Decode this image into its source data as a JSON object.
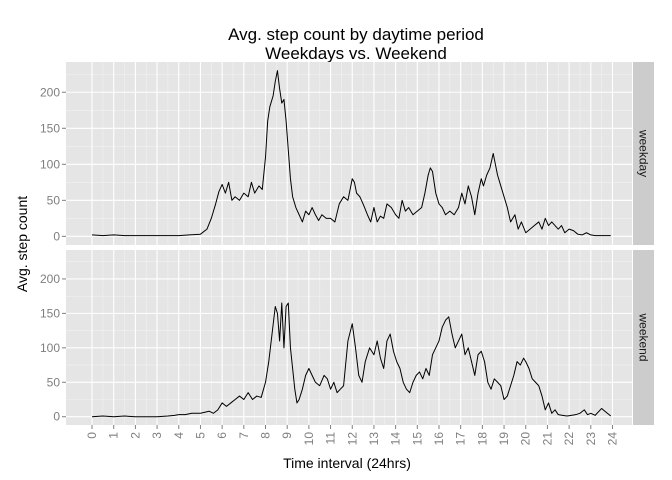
{
  "chart_data": {
    "type": "line",
    "title_lines": [
      "Avg. step count by daytime period",
      "Weekdays vs. Weekend"
    ],
    "xlabel": "Time interval (24hrs)",
    "ylabel": "Avg. step count",
    "x_ticks": [
      "0",
      "1",
      "2",
      "3",
      "4",
      "5",
      "6",
      "7",
      "8",
      "9",
      "10",
      "11",
      "12",
      "13",
      "14",
      "15",
      "16",
      "17",
      "18",
      "19",
      "20",
      "21",
      "22",
      "23",
      "24"
    ],
    "xlim": [
      -1.2,
      24.9
    ],
    "ylim": [
      -12,
      242
    ],
    "y_ticks": [
      0,
      50,
      100,
      150,
      200
    ],
    "y_tick_labels": [
      "0",
      "50",
      "100",
      "150",
      "200"
    ],
    "x_unit": "hour",
    "grid": true,
    "panel_background": "#e5e5e5",
    "strip_background": "#cccccc",
    "line_color": "#000000",
    "panels": [
      {
        "label": "weekday",
        "points": [
          [
            0,
            2
          ],
          [
            0.5,
            1
          ],
          [
            1,
            2
          ],
          [
            1.5,
            1
          ],
          [
            2,
            1
          ],
          [
            2.5,
            1
          ],
          [
            3,
            1
          ],
          [
            3.5,
            1
          ],
          [
            4,
            1
          ],
          [
            4.5,
            2
          ],
          [
            5,
            3
          ],
          [
            5.3,
            10
          ],
          [
            5.5,
            25
          ],
          [
            5.7,
            45
          ],
          [
            5.85,
            62
          ],
          [
            6,
            72
          ],
          [
            6.15,
            60
          ],
          [
            6.3,
            75
          ],
          [
            6.45,
            50
          ],
          [
            6.6,
            55
          ],
          [
            6.8,
            50
          ],
          [
            7,
            60
          ],
          [
            7.2,
            55
          ],
          [
            7.35,
            75
          ],
          [
            7.5,
            60
          ],
          [
            7.7,
            70
          ],
          [
            7.85,
            65
          ],
          [
            8,
            110
          ],
          [
            8.1,
            160
          ],
          [
            8.2,
            180
          ],
          [
            8.35,
            195
          ],
          [
            8.45,
            215
          ],
          [
            8.55,
            230
          ],
          [
            8.65,
            205
          ],
          [
            8.75,
            185
          ],
          [
            8.85,
            190
          ],
          [
            8.95,
            160
          ],
          [
            9.05,
            120
          ],
          [
            9.15,
            80
          ],
          [
            9.25,
            55
          ],
          [
            9.4,
            40
          ],
          [
            9.55,
            30
          ],
          [
            9.7,
            20
          ],
          [
            9.85,
            35
          ],
          [
            10,
            30
          ],
          [
            10.15,
            40
          ],
          [
            10.3,
            30
          ],
          [
            10.45,
            22
          ],
          [
            10.6,
            30
          ],
          [
            10.8,
            25
          ],
          [
            11,
            25
          ],
          [
            11.2,
            20
          ],
          [
            11.4,
            45
          ],
          [
            11.6,
            55
          ],
          [
            11.8,
            50
          ],
          [
            12,
            80
          ],
          [
            12.1,
            75
          ],
          [
            12.2,
            60
          ],
          [
            12.35,
            55
          ],
          [
            12.5,
            45
          ],
          [
            12.7,
            30
          ],
          [
            12.85,
            20
          ],
          [
            13,
            40
          ],
          [
            13.15,
            20
          ],
          [
            13.3,
            28
          ],
          [
            13.45,
            25
          ],
          [
            13.6,
            45
          ],
          [
            13.8,
            40
          ],
          [
            14,
            30
          ],
          [
            14.15,
            25
          ],
          [
            14.3,
            50
          ],
          [
            14.45,
            35
          ],
          [
            14.6,
            40
          ],
          [
            14.8,
            30
          ],
          [
            15,
            35
          ],
          [
            15.2,
            40
          ],
          [
            15.35,
            60
          ],
          [
            15.5,
            85
          ],
          [
            15.6,
            95
          ],
          [
            15.7,
            90
          ],
          [
            15.85,
            60
          ],
          [
            16,
            45
          ],
          [
            16.15,
            40
          ],
          [
            16.3,
            30
          ],
          [
            16.5,
            35
          ],
          [
            16.7,
            30
          ],
          [
            16.9,
            40
          ],
          [
            17.05,
            60
          ],
          [
            17.2,
            45
          ],
          [
            17.35,
            70
          ],
          [
            17.5,
            55
          ],
          [
            17.65,
            30
          ],
          [
            17.8,
            60
          ],
          [
            17.95,
            80
          ],
          [
            18.05,
            70
          ],
          [
            18.2,
            85
          ],
          [
            18.35,
            95
          ],
          [
            18.5,
            115
          ],
          [
            18.6,
            100
          ],
          [
            18.7,
            85
          ],
          [
            18.85,
            70
          ],
          [
            19,
            55
          ],
          [
            19.15,
            40
          ],
          [
            19.3,
            20
          ],
          [
            19.5,
            30
          ],
          [
            19.65,
            10
          ],
          [
            19.8,
            20
          ],
          [
            20,
            5
          ],
          [
            20.2,
            10
          ],
          [
            20.4,
            15
          ],
          [
            20.6,
            20
          ],
          [
            20.75,
            10
          ],
          [
            20.9,
            25
          ],
          [
            21.05,
            15
          ],
          [
            21.2,
            20
          ],
          [
            21.35,
            15
          ],
          [
            21.5,
            10
          ],
          [
            21.65,
            15
          ],
          [
            21.8,
            5
          ],
          [
            22,
            10
          ],
          [
            22.2,
            8
          ],
          [
            22.4,
            3
          ],
          [
            22.6,
            2
          ],
          [
            22.8,
            5
          ],
          [
            23,
            2
          ],
          [
            23.2,
            1
          ],
          [
            23.4,
            1
          ],
          [
            23.6,
            1
          ],
          [
            23.92,
            1
          ]
        ]
      },
      {
        "label": "weekend",
        "points": [
          [
            0,
            0
          ],
          [
            0.5,
            1
          ],
          [
            1,
            0
          ],
          [
            1.5,
            1
          ],
          [
            2,
            0
          ],
          [
            2.5,
            0
          ],
          [
            3,
            0
          ],
          [
            3.5,
            1
          ],
          [
            3.8,
            2
          ],
          [
            4,
            3
          ],
          [
            4.3,
            3
          ],
          [
            4.6,
            5
          ],
          [
            5,
            5
          ],
          [
            5.4,
            8
          ],
          [
            5.6,
            5
          ],
          [
            5.8,
            10
          ],
          [
            6,
            20
          ],
          [
            6.2,
            15
          ],
          [
            6.4,
            20
          ],
          [
            6.6,
            25
          ],
          [
            6.8,
            30
          ],
          [
            7,
            25
          ],
          [
            7.2,
            35
          ],
          [
            7.4,
            25
          ],
          [
            7.6,
            30
          ],
          [
            7.8,
            28
          ],
          [
            8,
            50
          ],
          [
            8.15,
            80
          ],
          [
            8.3,
            120
          ],
          [
            8.45,
            160
          ],
          [
            8.55,
            150
          ],
          [
            8.65,
            110
          ],
          [
            8.75,
            165
          ],
          [
            8.85,
            100
          ],
          [
            8.95,
            160
          ],
          [
            9.05,
            165
          ],
          [
            9.15,
            100
          ],
          [
            9.25,
            70
          ],
          [
            9.35,
            40
          ],
          [
            9.45,
            20
          ],
          [
            9.55,
            25
          ],
          [
            9.7,
            40
          ],
          [
            9.85,
            60
          ],
          [
            10,
            70
          ],
          [
            10.15,
            60
          ],
          [
            10.3,
            50
          ],
          [
            10.5,
            45
          ],
          [
            10.7,
            60
          ],
          [
            10.85,
            55
          ],
          [
            11,
            40
          ],
          [
            11.15,
            50
          ],
          [
            11.3,
            35
          ],
          [
            11.45,
            40
          ],
          [
            11.6,
            45
          ],
          [
            11.8,
            110
          ],
          [
            12,
            135
          ],
          [
            12.15,
            100
          ],
          [
            12.3,
            60
          ],
          [
            12.45,
            50
          ],
          [
            12.6,
            80
          ],
          [
            12.8,
            100
          ],
          [
            13,
            90
          ],
          [
            13.15,
            110
          ],
          [
            13.3,
            85
          ],
          [
            13.45,
            70
          ],
          [
            13.6,
            110
          ],
          [
            13.75,
            120
          ],
          [
            13.9,
            95
          ],
          [
            14.05,
            80
          ],
          [
            14.2,
            70
          ],
          [
            14.35,
            50
          ],
          [
            14.5,
            40
          ],
          [
            14.65,
            35
          ],
          [
            14.8,
            50
          ],
          [
            14.95,
            60
          ],
          [
            15.1,
            65
          ],
          [
            15.25,
            55
          ],
          [
            15.4,
            70
          ],
          [
            15.55,
            60
          ],
          [
            15.7,
            90
          ],
          [
            15.85,
            100
          ],
          [
            16,
            110
          ],
          [
            16.15,
            130
          ],
          [
            16.3,
            140
          ],
          [
            16.45,
            145
          ],
          [
            16.6,
            120
          ],
          [
            16.75,
            100
          ],
          [
            16.9,
            110
          ],
          [
            17.05,
            120
          ],
          [
            17.2,
            90
          ],
          [
            17.35,
            100
          ],
          [
            17.5,
            80
          ],
          [
            17.65,
            60
          ],
          [
            17.8,
            90
          ],
          [
            17.95,
            95
          ],
          [
            18.1,
            80
          ],
          [
            18.25,
            50
          ],
          [
            18.4,
            40
          ],
          [
            18.55,
            55
          ],
          [
            18.7,
            50
          ],
          [
            18.85,
            45
          ],
          [
            19,
            25
          ],
          [
            19.15,
            30
          ],
          [
            19.3,
            45
          ],
          [
            19.45,
            60
          ],
          [
            19.6,
            80
          ],
          [
            19.75,
            75
          ],
          [
            19.9,
            85
          ],
          [
            20,
            80
          ],
          [
            20.15,
            70
          ],
          [
            20.3,
            55
          ],
          [
            20.45,
            50
          ],
          [
            20.6,
            45
          ],
          [
            20.75,
            30
          ],
          [
            20.9,
            10
          ],
          [
            21.05,
            20
          ],
          [
            21.2,
            5
          ],
          [
            21.35,
            10
          ],
          [
            21.5,
            3
          ],
          [
            21.7,
            2
          ],
          [
            21.9,
            1
          ],
          [
            22.1,
            2
          ],
          [
            22.3,
            3
          ],
          [
            22.5,
            5
          ],
          [
            22.7,
            10
          ],
          [
            22.85,
            3
          ],
          [
            23,
            5
          ],
          [
            23.2,
            2
          ],
          [
            23.5,
            12
          ],
          [
            23.65,
            8
          ],
          [
            23.92,
            1
          ]
        ]
      }
    ]
  }
}
